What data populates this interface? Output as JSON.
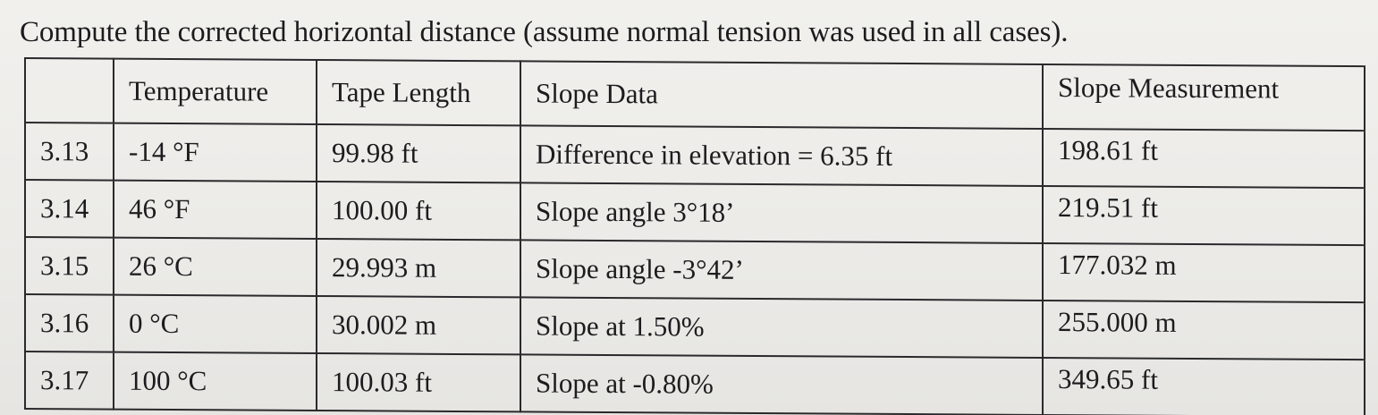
{
  "instruction": "Compute the corrected horizontal distance (assume normal tension was used in all cases).",
  "table": {
    "headers": {
      "id": "",
      "temperature": "Temperature",
      "tape_length": "Tape Length",
      "slope_data": "Slope Data",
      "slope_measurement": "Slope Measurement"
    },
    "rows": [
      {
        "id": "3.13",
        "temperature": "-14 °F",
        "tape_length": "99.98 ft",
        "slope_data": "Difference in elevation = 6.35 ft",
        "slope_measurement": "198.61 ft"
      },
      {
        "id": "3.14",
        "temperature": "46 °F",
        "tape_length": "100.00 ft",
        "slope_data": "Slope angle 3°18’",
        "slope_measurement": "219.51 ft"
      },
      {
        "id": "3.15",
        "temperature": "26 °C",
        "tape_length": "29.993 m",
        "slope_data": "Slope angle -3°42’",
        "slope_measurement": "177.032 m"
      },
      {
        "id": "3.16",
        "temperature": "0 °C",
        "tape_length": "30.002 m",
        "slope_data": "Slope at 1.50%",
        "slope_measurement": "255.000 m"
      },
      {
        "id": "3.17",
        "temperature": "100 °C",
        "tape_length": "100.03 ft",
        "slope_data": "Slope at -0.80%",
        "slope_measurement": "349.65 ft"
      }
    ]
  }
}
